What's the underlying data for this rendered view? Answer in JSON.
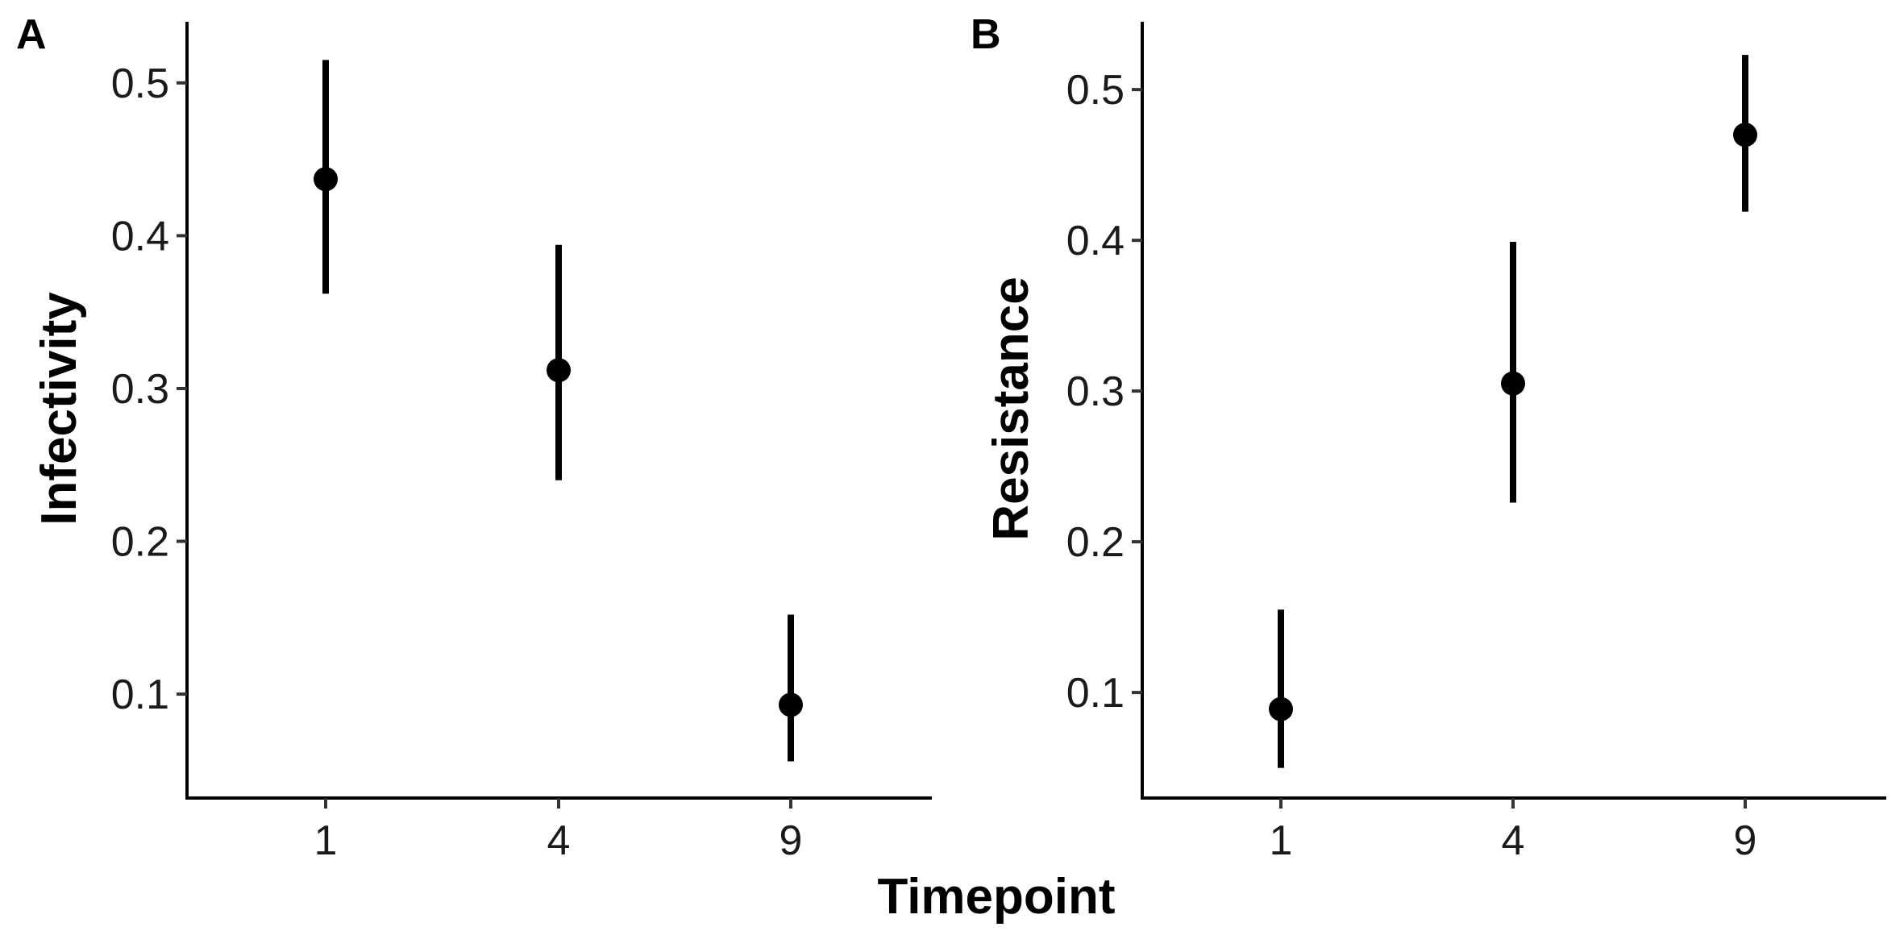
{
  "figure": {
    "shared_xlabel": "Timepoint"
  },
  "chart_data": [
    {
      "type": "scatter",
      "panel": "A",
      "title": "",
      "xlabel": "",
      "ylabel": "Infectivity",
      "categories": [
        "1",
        "4",
        "9"
      ],
      "values": [
        0.437,
        0.312,
        0.093
      ],
      "error_low": [
        0.362,
        0.24,
        0.056
      ],
      "error_high": [
        0.515,
        0.394,
        0.152
      ],
      "ylim": [
        0.032,
        0.54
      ],
      "yticks": [
        0.1,
        0.2,
        0.3,
        0.4,
        0.5
      ],
      "ytick_labels": [
        "0.1",
        "0.2",
        "0.3",
        "0.4",
        "0.5"
      ],
      "grid": false,
      "color": "#000000"
    },
    {
      "type": "scatter",
      "panel": "B",
      "title": "",
      "xlabel": "",
      "ylabel": "Resistance",
      "categories": [
        "1",
        "4",
        "9"
      ],
      "values": [
        0.089,
        0.305,
        0.47
      ],
      "error_low": [
        0.05,
        0.226,
        0.419
      ],
      "error_high": [
        0.155,
        0.399,
        0.523
      ],
      "ylim": [
        0.03,
        0.545
      ],
      "yticks": [
        0.1,
        0.2,
        0.3,
        0.4,
        0.5
      ],
      "ytick_labels": [
        "0.1",
        "0.2",
        "0.3",
        "0.4",
        "0.5"
      ],
      "grid": false,
      "color": "#000000"
    }
  ]
}
